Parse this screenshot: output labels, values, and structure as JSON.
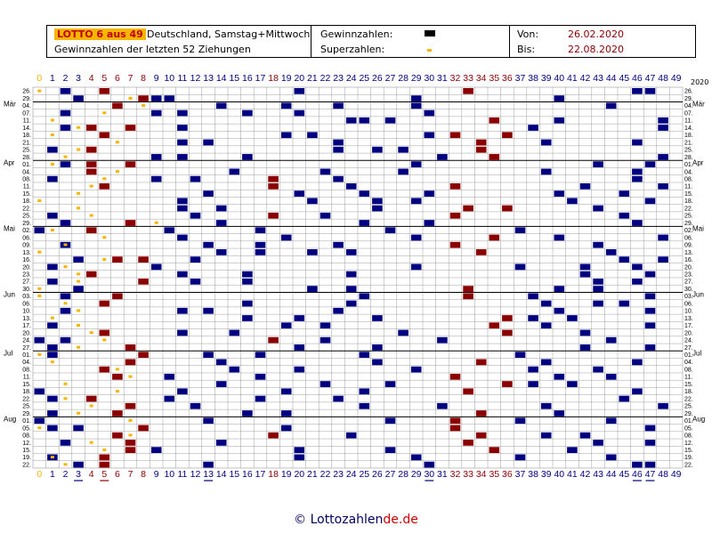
{
  "header": {
    "brand": "LOTTO 6 aus 49",
    "subtitle": "Deutschland, Samstag+Mittwoch",
    "line2": "Gewinnzahlen der letzten 52 Ziehungen",
    "legend_winning": "Gewinnzahlen:",
    "legend_super": "Superzahlen:",
    "von_label": "Von:",
    "von_value": "26.02.2020",
    "bis_label": "Bis:",
    "bis_value": "22.08.2020"
  },
  "year_label": "2020",
  "footer": {
    "copyright": "© Lottozahlen",
    "domain": "de.de"
  },
  "colors": {
    "red": "#8b0000",
    "blue": "#000080",
    "super": "#f7b500",
    "grid": "#888888"
  },
  "chart_data": {
    "type": "heatmap",
    "columns": [
      "0",
      "1",
      "2",
      "3",
      "4",
      "5",
      "6",
      "7",
      "8",
      "9",
      "10",
      "11",
      "12",
      "13",
      "14",
      "15",
      "16",
      "17",
      "18",
      "19",
      "20",
      "21",
      "22",
      "23",
      "24",
      "25",
      "26",
      "27",
      "28",
      "29",
      "30",
      "31",
      "32",
      "33",
      "34",
      "35",
      "36",
      "37",
      "38",
      "39",
      "40",
      "41",
      "42",
      "43",
      "44",
      "45",
      "46",
      "47",
      "48",
      "49"
    ],
    "dates": [
      "26.",
      "29.",
      "04.",
      "07.",
      "11.",
      "14.",
      "18.",
      "21.",
      "25.",
      "28.",
      "01.",
      "04.",
      "08.",
      "11.",
      "15.",
      "18.",
      "22.",
      "25.",
      "29.",
      "02.",
      "06.",
      "09.",
      "13.",
      "16.",
      "20.",
      "23.",
      "27.",
      "30.",
      "03.",
      "06.",
      "10.",
      "13.",
      "17.",
      "20.",
      "24.",
      "27.",
      "01.",
      "04.",
      "08.",
      "11.",
      "15.",
      "18.",
      "22.",
      "25.",
      "29.",
      "01.",
      "05.",
      "08.",
      "12.",
      "15.",
      "19.",
      "22."
    ],
    "month_labels": [
      {
        "row": 2,
        "label": "Mär"
      },
      {
        "row": 10,
        "label": "Apr"
      },
      {
        "row": 19,
        "label": "Mai"
      },
      {
        "row": 28,
        "label": "Jun"
      },
      {
        "row": 36,
        "label": "Jul"
      },
      {
        "row": 45,
        "label": "Aug"
      }
    ],
    "draws": [
      {
        "w": [
          2,
          5,
          20,
          33,
          46,
          47
        ],
        "s": 0
      },
      {
        "w": [
          3,
          8,
          9,
          10,
          29,
          40
        ],
        "s": 7
      },
      {
        "w": [
          6,
          14,
          19,
          23,
          29,
          44
        ],
        "s": 8
      },
      {
        "w": [
          2,
          9,
          11,
          16,
          20,
          30
        ],
        "s": 5
      },
      {
        "w": [
          24,
          25,
          27,
          35,
          40,
          48
        ],
        "s": 1
      },
      {
        "w": [
          2,
          4,
          7,
          11,
          38,
          48
        ],
        "s": 3
      },
      {
        "w": [
          5,
          19,
          21,
          30,
          32,
          36
        ],
        "s": 1
      },
      {
        "w": [
          11,
          13,
          23,
          34,
          39,
          46
        ],
        "s": 6
      },
      {
        "w": [
          1,
          4,
          23,
          26,
          28,
          34
        ],
        "s": 3
      },
      {
        "w": [
          9,
          11,
          16,
          31,
          35,
          48
        ],
        "s": 2
      },
      {
        "w": [
          2,
          4,
          7,
          29,
          43,
          47
        ],
        "s": 1
      },
      {
        "w": [
          4,
          15,
          22,
          28,
          39,
          46
        ],
        "s": 6
      },
      {
        "w": [
          1,
          9,
          12,
          18,
          23,
          46
        ],
        "s": 5
      },
      {
        "w": [
          5,
          18,
          24,
          32,
          42,
          48
        ],
        "s": 4
      },
      {
        "w": [
          13,
          20,
          25,
          30,
          40,
          45
        ],
        "s": 3
      },
      {
        "w": [
          11,
          21,
          26,
          29,
          41,
          47
        ],
        "s": 0
      },
      {
        "w": [
          11,
          14,
          26,
          33,
          36,
          43
        ],
        "s": 3
      },
      {
        "w": [
          1,
          12,
          18,
          22,
          32,
          45
        ],
        "s": 4
      },
      {
        "w": [
          2,
          7,
          14,
          25,
          30,
          46
        ],
        "s": 9
      },
      {
        "w": [
          0,
          4,
          10,
          17,
          27,
          37
        ],
        "s": 1
      },
      {
        "w": [
          11,
          19,
          29,
          35,
          40,
          48
        ],
        "s": 5
      },
      {
        "w": [
          2,
          13,
          17,
          23,
          32,
          43
        ],
        "s": 2
      },
      {
        "w": [
          14,
          17,
          21,
          24,
          34,
          44
        ],
        "s": 0
      },
      {
        "w": [
          3,
          6,
          8,
          12,
          45,
          48
        ],
        "s": 5
      },
      {
        "w": [
          1,
          9,
          29,
          37,
          42,
          46
        ],
        "s": 2
      },
      {
        "w": [
          4,
          11,
          16,
          24,
          42,
          47
        ],
        "s": 3
      },
      {
        "w": [
          1,
          8,
          12,
          16,
          43,
          46
        ],
        "s": 3
      },
      {
        "w": [
          3,
          21,
          24,
          33,
          40,
          43
        ],
        "s": 0
      },
      {
        "w": [
          2,
          6,
          25,
          33,
          38,
          47
        ],
        "s": 0
      },
      {
        "w": [
          5,
          16,
          24,
          39,
          43,
          45
        ],
        "s": 2
      },
      {
        "w": [
          2,
          11,
          13,
          23,
          40,
          47
        ],
        "s": 3
      },
      {
        "w": [
          16,
          20,
          26,
          36,
          38,
          41
        ],
        "s": 1
      },
      {
        "w": [
          1,
          19,
          22,
          35,
          39,
          47
        ],
        "s": 3
      },
      {
        "w": [
          5,
          11,
          15,
          28,
          36,
          42
        ],
        "s": 4
      },
      {
        "w": [
          0,
          2,
          18,
          22,
          31,
          44
        ],
        "s": 5
      },
      {
        "w": [
          1,
          7,
          20,
          26,
          42,
          47
        ],
        "s": 3
      },
      {
        "w": [
          1,
          8,
          13,
          17,
          25,
          37
        ],
        "s": 0
      },
      {
        "w": [
          7,
          14,
          26,
          34,
          39,
          46
        ],
        "s": 1
      },
      {
        "w": [
          5,
          15,
          20,
          29,
          38,
          43
        ],
        "s": 6
      },
      {
        "w": [
          6,
          10,
          17,
          32,
          40,
          44
        ],
        "s": 7
      },
      {
        "w": [
          14,
          22,
          27,
          36,
          38,
          41
        ],
        "s": 2
      },
      {
        "w": [
          0,
          11,
          19,
          25,
          33,
          46
        ],
        "s": 6
      },
      {
        "w": [
          1,
          4,
          10,
          17,
          23,
          45
        ],
        "s": 2
      },
      {
        "w": [
          7,
          12,
          25,
          31,
          39,
          48
        ],
        "s": 4
      },
      {
        "w": [
          1,
          6,
          16,
          19,
          34,
          40
        ],
        "s": 3
      },
      {
        "w": [
          0,
          13,
          27,
          32,
          37,
          44
        ],
        "s": 7
      },
      {
        "w": [
          1,
          3,
          8,
          19,
          32,
          47
        ],
        "s": 0
      },
      {
        "w": [
          6,
          18,
          24,
          34,
          39,
          42
        ],
        "s": 7
      },
      {
        "w": [
          2,
          7,
          14,
          33,
          43,
          47
        ],
        "s": 4
      },
      {
        "w": [
          7,
          9,
          20,
          27,
          35,
          41
        ],
        "s": 5
      },
      {
        "w": [
          1,
          5,
          20,
          29,
          37,
          44
        ],
        "s": 1
      },
      {
        "w": [
          3,
          5,
          13,
          30,
          46,
          47
        ],
        "s": 2
      }
    ]
  }
}
